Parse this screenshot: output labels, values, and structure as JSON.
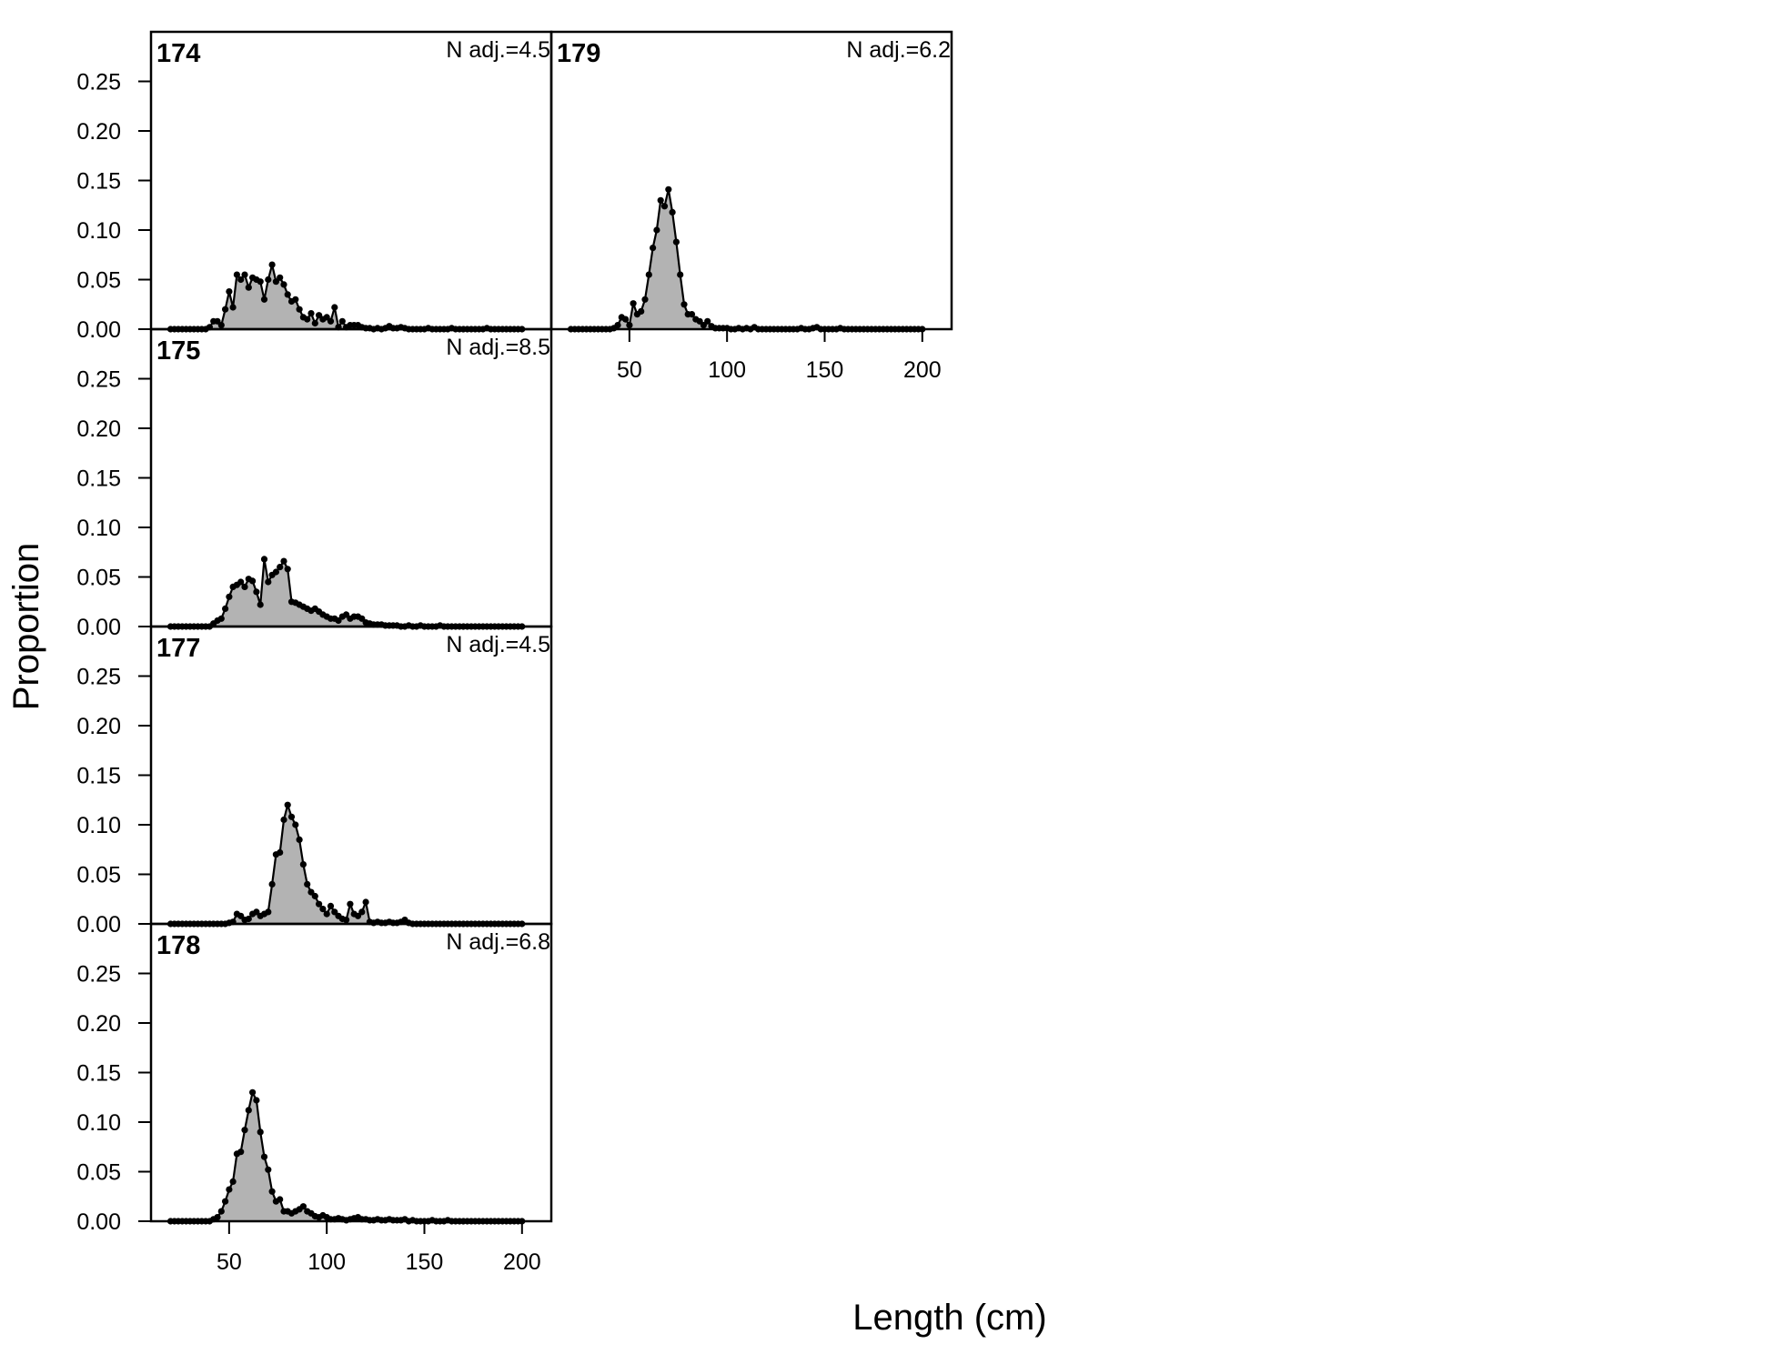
{
  "chart_data": {
    "type": "area",
    "xlabel": "Length (cm)",
    "ylabel": "Proportion",
    "xlim": [
      10,
      215
    ],
    "ylim": [
      0,
      0.3
    ],
    "x_ticks": [
      50,
      100,
      150,
      200
    ],
    "x_tick_labels": [
      "50",
      "100",
      "150",
      "200"
    ],
    "y_ticks": [
      0,
      0.05,
      0.1,
      0.15,
      0.2,
      0.25
    ],
    "y_tick_labels": [
      "0.00",
      "0.05",
      "0.10",
      "0.15",
      "0.20",
      "0.25"
    ],
    "colors": {
      "fill": "#b3b3b3",
      "line": "#000000",
      "points": "#000000"
    },
    "panels": [
      {
        "id": "174",
        "label": "174",
        "n_adj": "N adj.=4.5",
        "x": [
          20,
          22,
          24,
          26,
          28,
          30,
          32,
          34,
          36,
          38,
          40,
          42,
          44,
          46,
          48,
          50,
          52,
          54,
          56,
          58,
          60,
          62,
          64,
          66,
          68,
          70,
          72,
          74,
          76,
          78,
          80,
          82,
          84,
          86,
          88,
          90,
          92,
          94,
          96,
          98,
          100,
          102,
          104,
          106,
          108,
          110,
          112,
          114,
          116,
          118,
          120,
          122,
          124,
          126,
          128,
          130,
          132,
          134,
          136,
          138,
          140,
          142,
          144,
          146,
          148,
          150,
          152,
          154,
          156,
          158,
          160,
          162,
          164,
          166,
          168,
          170,
          172,
          174,
          176,
          178,
          180,
          182,
          184,
          186,
          188,
          190,
          192,
          194,
          196,
          198,
          200
        ],
        "y": [
          0,
          0,
          0,
          0,
          0,
          0,
          0,
          0,
          0,
          0,
          0.002,
          0.008,
          0.008,
          0.004,
          0.02,
          0.038,
          0.022,
          0.055,
          0.05,
          0.055,
          0.042,
          0.052,
          0.05,
          0.048,
          0.03,
          0.05,
          0.065,
          0.048,
          0.052,
          0.045,
          0.035,
          0.028,
          0.03,
          0.02,
          0.012,
          0.01,
          0.016,
          0.006,
          0.014,
          0.01,
          0.012,
          0.008,
          0.022,
          0.002,
          0.008,
          0.002,
          0.004,
          0.004,
          0.004,
          0.002,
          0.001,
          0.001,
          0,
          0.001,
          0,
          0.001,
          0.003,
          0.001,
          0.001,
          0.002,
          0.001,
          0,
          0,
          0,
          0,
          0,
          0.001,
          0,
          0,
          0,
          0,
          0,
          0.001,
          0,
          0,
          0,
          0,
          0,
          0,
          0,
          0,
          0.001,
          0,
          0,
          0,
          0,
          0,
          0,
          0,
          0,
          0
        ]
      },
      {
        "id": "175",
        "label": "175",
        "n_adj": "N adj.=8.5",
        "x": [
          20,
          22,
          24,
          26,
          28,
          30,
          32,
          34,
          36,
          38,
          40,
          42,
          44,
          46,
          48,
          50,
          52,
          54,
          56,
          58,
          60,
          62,
          64,
          66,
          68,
          70,
          72,
          74,
          76,
          78,
          80,
          82,
          84,
          86,
          88,
          90,
          92,
          94,
          96,
          98,
          100,
          102,
          104,
          106,
          108,
          110,
          112,
          114,
          116,
          118,
          120,
          122,
          124,
          126,
          128,
          130,
          132,
          134,
          136,
          138,
          140,
          142,
          144,
          146,
          148,
          150,
          152,
          154,
          156,
          158,
          160,
          162,
          164,
          166,
          168,
          170,
          172,
          174,
          176,
          178,
          180,
          182,
          184,
          186,
          188,
          190,
          192,
          194,
          196,
          198,
          200
        ],
        "y": [
          0,
          0,
          0,
          0,
          0,
          0,
          0,
          0,
          0,
          0,
          0,
          0.003,
          0.006,
          0.008,
          0.018,
          0.03,
          0.04,
          0.042,
          0.045,
          0.04,
          0.048,
          0.046,
          0.035,
          0.022,
          0.068,
          0.045,
          0.052,
          0.055,
          0.06,
          0.066,
          0.058,
          0.025,
          0.024,
          0.022,
          0.02,
          0.018,
          0.016,
          0.018,
          0.015,
          0.012,
          0.01,
          0.008,
          0.008,
          0.006,
          0.01,
          0.012,
          0.008,
          0.01,
          0.01,
          0.008,
          0.004,
          0.003,
          0.002,
          0.002,
          0.002,
          0.001,
          0.001,
          0.001,
          0.001,
          0,
          0,
          0.001,
          0,
          0,
          0.001,
          0,
          0,
          0,
          0,
          0.001,
          0,
          0,
          0,
          0,
          0,
          0,
          0,
          0,
          0,
          0,
          0,
          0,
          0,
          0,
          0,
          0,
          0,
          0,
          0,
          0,
          0
        ]
      },
      {
        "id": "177",
        "label": "177",
        "n_adj": "N adj.=4.5",
        "x": [
          20,
          22,
          24,
          26,
          28,
          30,
          32,
          34,
          36,
          38,
          40,
          42,
          44,
          46,
          48,
          50,
          52,
          54,
          56,
          58,
          60,
          62,
          64,
          66,
          68,
          70,
          72,
          74,
          76,
          78,
          80,
          82,
          84,
          86,
          88,
          90,
          92,
          94,
          96,
          98,
          100,
          102,
          104,
          106,
          108,
          110,
          112,
          114,
          116,
          118,
          120,
          122,
          124,
          126,
          128,
          130,
          132,
          134,
          136,
          138,
          140,
          142,
          144,
          146,
          148,
          150,
          152,
          154,
          156,
          158,
          160,
          162,
          164,
          166,
          168,
          170,
          172,
          174,
          176,
          178,
          180,
          182,
          184,
          186,
          188,
          190,
          192,
          194,
          196,
          198,
          200
        ],
        "y": [
          0,
          0,
          0,
          0,
          0,
          0,
          0,
          0,
          0,
          0,
          0,
          0,
          0,
          0,
          0,
          0.001,
          0.002,
          0.01,
          0.008,
          0.004,
          0.005,
          0.01,
          0.012,
          0.008,
          0.01,
          0.012,
          0.04,
          0.07,
          0.072,
          0.105,
          0.12,
          0.108,
          0.1,
          0.085,
          0.06,
          0.04,
          0.032,
          0.028,
          0.02,
          0.015,
          0.01,
          0.018,
          0.012,
          0.008,
          0.005,
          0.004,
          0.02,
          0.01,
          0.008,
          0.012,
          0.022,
          0.002,
          0.001,
          0.002,
          0.001,
          0.001,
          0.002,
          0.001,
          0.001,
          0.002,
          0.004,
          0.001,
          0,
          0,
          0,
          0,
          0,
          0,
          0,
          0,
          0,
          0,
          0,
          0,
          0,
          0,
          0,
          0,
          0,
          0,
          0,
          0,
          0,
          0,
          0,
          0,
          0,
          0,
          0,
          0,
          0
        ]
      },
      {
        "id": "178",
        "label": "178",
        "n_adj": "N adj.=6.8",
        "x": [
          20,
          22,
          24,
          26,
          28,
          30,
          32,
          34,
          36,
          38,
          40,
          42,
          44,
          46,
          48,
          50,
          52,
          54,
          56,
          58,
          60,
          62,
          64,
          66,
          68,
          70,
          72,
          74,
          76,
          78,
          80,
          82,
          84,
          86,
          88,
          90,
          92,
          94,
          96,
          98,
          100,
          102,
          104,
          106,
          108,
          110,
          112,
          114,
          116,
          118,
          120,
          122,
          124,
          126,
          128,
          130,
          132,
          134,
          136,
          138,
          140,
          142,
          144,
          146,
          148,
          150,
          152,
          154,
          156,
          158,
          160,
          162,
          164,
          166,
          168,
          170,
          172,
          174,
          176,
          178,
          180,
          182,
          184,
          186,
          188,
          190,
          192,
          194,
          196,
          198,
          200
        ],
        "y": [
          0,
          0,
          0,
          0,
          0,
          0,
          0,
          0,
          0,
          0,
          0,
          0.002,
          0.004,
          0.01,
          0.02,
          0.032,
          0.04,
          0.068,
          0.07,
          0.092,
          0.112,
          0.13,
          0.122,
          0.09,
          0.065,
          0.052,
          0.03,
          0.02,
          0.022,
          0.01,
          0.01,
          0.008,
          0.01,
          0.012,
          0.015,
          0.01,
          0.008,
          0.005,
          0.004,
          0.006,
          0.004,
          0.002,
          0.002,
          0.003,
          0.002,
          0.001,
          0.002,
          0.003,
          0.004,
          0.002,
          0.002,
          0.001,
          0.001,
          0.002,
          0.001,
          0.001,
          0.002,
          0.001,
          0.001,
          0.001,
          0.002,
          0,
          0.001,
          0,
          0,
          0,
          0,
          0.001,
          0,
          0,
          0,
          0.001,
          0,
          0,
          0,
          0,
          0,
          0,
          0,
          0,
          0,
          0,
          0,
          0,
          0,
          0,
          0,
          0,
          0,
          0,
          0
        ]
      },
      {
        "id": "179",
        "label": "179",
        "n_adj": "N adj.=6.2",
        "x": [
          20,
          22,
          24,
          26,
          28,
          30,
          32,
          34,
          36,
          38,
          40,
          42,
          44,
          46,
          48,
          50,
          52,
          54,
          56,
          58,
          60,
          62,
          64,
          66,
          68,
          70,
          72,
          74,
          76,
          78,
          80,
          82,
          84,
          86,
          88,
          90,
          92,
          94,
          96,
          98,
          100,
          102,
          104,
          106,
          108,
          110,
          112,
          114,
          116,
          118,
          120,
          122,
          124,
          126,
          128,
          130,
          132,
          134,
          136,
          138,
          140,
          142,
          144,
          146,
          148,
          150,
          152,
          154,
          156,
          158,
          160,
          162,
          164,
          166,
          168,
          170,
          172,
          174,
          176,
          178,
          180,
          182,
          184,
          186,
          188,
          190,
          192,
          194,
          196,
          198,
          200
        ],
        "y": [
          0,
          0,
          0,
          0,
          0,
          0,
          0,
          0,
          0,
          0,
          0,
          0.001,
          0.004,
          0.012,
          0.01,
          0.004,
          0.026,
          0.015,
          0.018,
          0.03,
          0.055,
          0.082,
          0.1,
          0.13,
          0.124,
          0.141,
          0.118,
          0.088,
          0.055,
          0.025,
          0.015,
          0.015,
          0.01,
          0.008,
          0.004,
          0.008,
          0.003,
          0.001,
          0.001,
          0.001,
          0.001,
          0,
          0,
          0.001,
          0,
          0.001,
          0,
          0.002,
          0,
          0,
          0,
          0,
          0,
          0,
          0,
          0,
          0,
          0,
          0,
          0.001,
          0,
          0,
          0.001,
          0.002,
          0,
          0,
          0,
          0,
          0,
          0.001,
          0,
          0,
          0,
          0,
          0,
          0,
          0,
          0,
          0,
          0,
          0,
          0,
          0,
          0,
          0,
          0,
          0,
          0,
          0,
          0,
          0
        ]
      }
    ]
  }
}
